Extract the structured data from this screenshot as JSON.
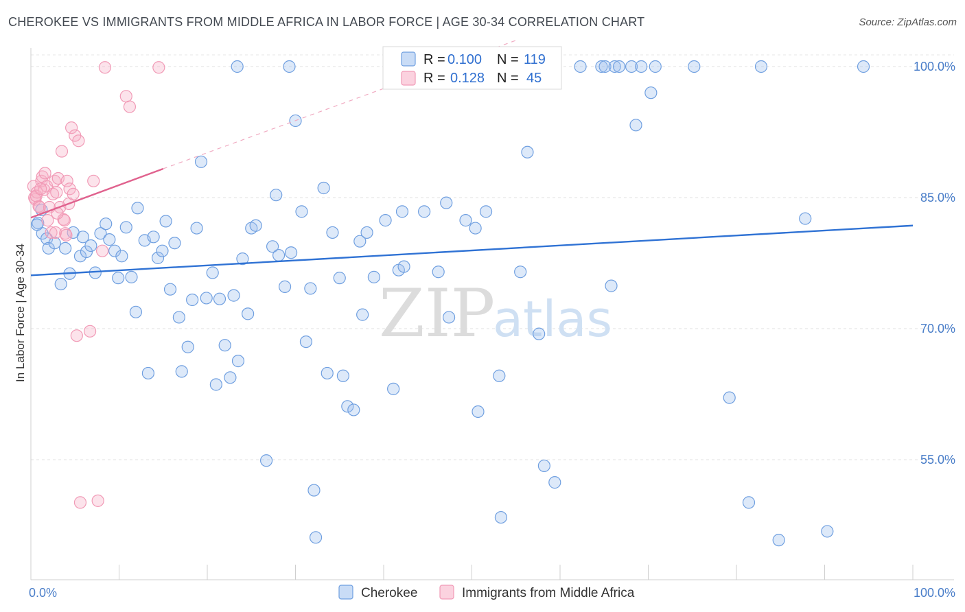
{
  "header": {
    "title": "CHEROKEE VS IMMIGRANTS FROM MIDDLE AFRICA IN LABOR FORCE | AGE 30-34 CORRELATION CHART",
    "source": "Source: ZipAtlas.com"
  },
  "watermark": {
    "zip": "ZIP",
    "atlas": "atlas"
  },
  "legend": {
    "series": [
      {
        "r_label": "R =",
        "r_value": "0.100",
        "n_label": "N =",
        "n_value": "119"
      },
      {
        "r_label": "R =",
        "r_value": "0.128",
        "n_label": "N =",
        "n_value": "45"
      }
    ]
  },
  "chart_data": {
    "type": "scatter",
    "title": "CHEROKEE VS IMMIGRANTS FROM MIDDLE AFRICA IN LABOR FORCE | AGE 30-34 CORRELATION CHART",
    "xlabel": "",
    "ylabel": "In Labor Force | Age 30-34",
    "xlim": [
      0,
      100
    ],
    "ylim": [
      40,
      101
    ],
    "x_tick_labels": [
      "0.0%",
      "100.0%"
    ],
    "y_ticks": [
      55,
      70,
      85,
      100
    ],
    "y_tick_labels": [
      "55.0%",
      "70.0%",
      "85.0%",
      "100.0%"
    ],
    "grid": true,
    "legend_position": "top-center",
    "colors": {
      "cherokee": "#6f9fe0",
      "cherokee_line": "#2f72d4",
      "middle_africa": "#f19ab6",
      "middle_africa_line": "#e0628e"
    },
    "series": [
      {
        "name": "Cherokee",
        "trend": {
          "x": [
            0,
            100
          ],
          "y": [
            76.1,
            81.8
          ]
        },
        "points": [
          [
            0.8,
            82.1
          ],
          [
            1.3,
            80.9
          ],
          [
            1.8,
            80.3
          ],
          [
            2.0,
            79.2
          ],
          [
            2.7,
            79.8
          ],
          [
            3.4,
            75.1
          ],
          [
            3.9,
            79.2
          ],
          [
            4.4,
            76.3
          ],
          [
            4.8,
            81.0
          ],
          [
            5.6,
            78.3
          ],
          [
            5.9,
            80.5
          ],
          [
            6.3,
            78.8
          ],
          [
            6.8,
            79.5
          ],
          [
            7.3,
            76.4
          ],
          [
            7.9,
            80.9
          ],
          [
            8.5,
            82.0
          ],
          [
            8.9,
            80.2
          ],
          [
            9.5,
            78.9
          ],
          [
            9.9,
            75.8
          ],
          [
            10.3,
            78.3
          ],
          [
            10.8,
            81.6
          ],
          [
            11.4,
            75.9
          ],
          [
            11.9,
            71.9
          ],
          [
            12.1,
            83.8
          ],
          [
            12.9,
            80.1
          ],
          [
            13.3,
            64.9
          ],
          [
            13.9,
            80.5
          ],
          [
            14.4,
            78.1
          ],
          [
            14.9,
            78.9
          ],
          [
            15.3,
            82.3
          ],
          [
            15.8,
            74.5
          ],
          [
            16.3,
            79.8
          ],
          [
            16.8,
            71.3
          ],
          [
            17.1,
            65.1
          ],
          [
            17.8,
            67.9
          ],
          [
            18.3,
            73.3
          ],
          [
            18.8,
            81.5
          ],
          [
            19.3,
            89.1
          ],
          [
            19.9,
            73.5
          ],
          [
            20.6,
            76.4
          ],
          [
            21.0,
            63.6
          ],
          [
            21.4,
            73.4
          ],
          [
            22.0,
            68.1
          ],
          [
            22.6,
            64.4
          ],
          [
            23.0,
            73.8
          ],
          [
            23.5,
            66.3
          ],
          [
            24.0,
            78.0
          ],
          [
            24.6,
            71.7
          ],
          [
            25.0,
            81.5
          ],
          [
            25.5,
            81.8
          ],
          [
            26.7,
            54.9
          ],
          [
            27.4,
            79.4
          ],
          [
            27.8,
            85.3
          ],
          [
            28.1,
            78.4
          ],
          [
            28.8,
            74.8
          ],
          [
            29.5,
            78.7
          ],
          [
            30.0,
            93.8
          ],
          [
            30.7,
            83.4
          ],
          [
            31.2,
            68.5
          ],
          [
            31.7,
            74.6
          ],
          [
            32.1,
            51.5
          ],
          [
            32.3,
            46.1
          ],
          [
            33.2,
            86.1
          ],
          [
            33.6,
            64.9
          ],
          [
            34.2,
            81.0
          ],
          [
            35.0,
            75.8
          ],
          [
            35.4,
            64.6
          ],
          [
            35.9,
            61.1
          ],
          [
            36.6,
            60.7
          ],
          [
            37.3,
            80.0
          ],
          [
            37.6,
            71.6
          ],
          [
            38.1,
            81.0
          ],
          [
            38.9,
            75.9
          ],
          [
            40.2,
            82.4
          ],
          [
            41.1,
            63.1
          ],
          [
            41.7,
            76.7
          ],
          [
            42.1,
            83.4
          ],
          [
            42.3,
            77.1
          ],
          [
            44.6,
            83.4
          ],
          [
            46.2,
            76.5
          ],
          [
            47.1,
            84.4
          ],
          [
            47.4,
            71.3
          ],
          [
            49.3,
            82.4
          ],
          [
            50.4,
            81.5
          ],
          [
            50.7,
            60.5
          ],
          [
            51.6,
            83.4
          ],
          [
            53.1,
            64.6
          ],
          [
            53.3,
            48.4
          ],
          [
            55.5,
            76.5
          ],
          [
            56.3,
            90.2
          ],
          [
            57.6,
            69.4
          ],
          [
            58.2,
            54.3
          ],
          [
            59.4,
            52.4
          ],
          [
            62.3,
            100
          ],
          [
            64.7,
            100
          ],
          [
            65.1,
            100
          ],
          [
            66.2,
            100
          ],
          [
            66.7,
            100
          ],
          [
            68.1,
            100
          ],
          [
            68.6,
            93.3
          ],
          [
            69.2,
            100
          ],
          [
            70.3,
            97.0
          ],
          [
            70.8,
            100
          ],
          [
            65.8,
            74.9
          ],
          [
            75.2,
            100
          ],
          [
            79.2,
            62.1
          ],
          [
            81.4,
            50.1
          ],
          [
            82.8,
            100
          ],
          [
            87.8,
            82.6
          ],
          [
            90.3,
            46.8
          ],
          [
            94.4,
            100
          ],
          [
            84.8,
            45.8
          ],
          [
            23.4,
            100
          ],
          [
            29.3,
            100
          ],
          [
            51.5,
            100
          ],
          [
            0.7,
            81.9
          ],
          [
            1.2,
            83.6
          ]
        ]
      },
      {
        "name": "Immigrants from Middle Africa",
        "trend": {
          "x": [
            0,
            15
          ],
          "y": [
            82.7,
            88.3
          ]
        },
        "trend_extended": {
          "x": [
            15,
            55
          ],
          "y": [
            88.3,
            103.0
          ]
        },
        "points": [
          [
            0.3,
            86.3
          ],
          [
            0.4,
            85.0
          ],
          [
            0.5,
            84.8
          ],
          [
            0.7,
            85.6
          ],
          [
            0.9,
            84.0
          ],
          [
            1.0,
            83.9
          ],
          [
            1.2,
            86.9
          ],
          [
            1.3,
            87.4
          ],
          [
            1.5,
            85.9
          ],
          [
            1.6,
            87.8
          ],
          [
            1.8,
            86.3
          ],
          [
            1.9,
            82.4
          ],
          [
            2.1,
            83.9
          ],
          [
            2.3,
            81.0
          ],
          [
            2.5,
            85.4
          ],
          [
            2.7,
            86.9
          ],
          [
            2.9,
            85.6
          ],
          [
            3.1,
            87.2
          ],
          [
            3.3,
            83.9
          ],
          [
            3.5,
            90.3
          ],
          [
            3.7,
            82.5
          ],
          [
            3.8,
            82.4
          ],
          [
            3.9,
            80.9
          ],
          [
            4.1,
            86.9
          ],
          [
            4.3,
            84.3
          ],
          [
            4.4,
            86.0
          ],
          [
            4.6,
            93.0
          ],
          [
            4.8,
            85.4
          ],
          [
            5.0,
            92.1
          ],
          [
            5.2,
            69.2
          ],
          [
            5.4,
            91.5
          ],
          [
            5.6,
            50.1
          ],
          [
            6.7,
            69.7
          ],
          [
            7.1,
            86.9
          ],
          [
            7.6,
            50.3
          ],
          [
            8.1,
            78.9
          ],
          [
            8.4,
            99.9
          ],
          [
            10.8,
            96.6
          ],
          [
            11.2,
            95.4
          ],
          [
            14.5,
            99.9
          ],
          [
            2.8,
            81.0
          ],
          [
            3.0,
            83.2
          ],
          [
            0.6,
            85.2
          ],
          [
            1.1,
            86.0
          ],
          [
            4.0,
            80.7
          ]
        ]
      }
    ]
  }
}
